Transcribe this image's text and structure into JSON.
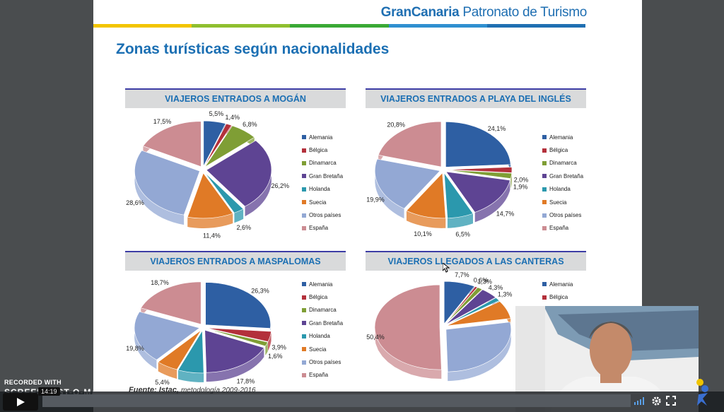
{
  "slide": {
    "brand_bold": "GranCanaria",
    "brand_rest": "Patronato de Turismo",
    "title": "Zonas turísticas según nacionalidades",
    "source_main": "Fuente: Istac,",
    "source_rest": "metodología 2009-2016",
    "stripe_colors": [
      "#f2c500",
      "#8fbf2f",
      "#3aa935",
      "#2f8fd0",
      "#1f6fb2"
    ]
  },
  "legend_labels": [
    "Alemania",
    "Bélgica",
    "Dinamarca",
    "Gran Bretaña",
    "Holanda",
    "Suecia",
    "Otros países",
    "España"
  ],
  "legend_colors": [
    "#2e5fa3",
    "#b3303b",
    "#7f9e35",
    "#5e4493",
    "#2b98ad",
    "#e07a26",
    "#93a8d4",
    "#cc8c92"
  ],
  "chart_data": [
    {
      "type": "pie",
      "title": "VIAJEROS ENTRADOS A MOGÁN",
      "categories": [
        "Alemania",
        "Bélgica",
        "Dinamarca",
        "Gran Bretaña",
        "Holanda",
        "Suecia",
        "Otros países",
        "España"
      ],
      "values": [
        5.5,
        1.4,
        6.8,
        26.2,
        2.6,
        11.4,
        28.6,
        17.5
      ],
      "labels": [
        "5,5%",
        "1,4%",
        "6,8%",
        "26,2%",
        "2,6%",
        "11,4%",
        "28,6%",
        "17,5%"
      ],
      "legend": "right"
    },
    {
      "type": "pie",
      "title": "VIAJEROS ENTRADOS A PLAYA DEL INGLÉS",
      "categories": [
        "Alemania",
        "Bélgica",
        "Dinamarca",
        "Gran Bretaña",
        "Holanda",
        "Suecia",
        "Otros países",
        "España"
      ],
      "values": [
        24.1,
        2.0,
        1.9,
        14.7,
        6.5,
        10.1,
        19.9,
        20.8
      ],
      "labels": [
        "24,1%",
        "2,0%",
        "1,9%",
        "14,7%",
        "6,5%",
        "10,1%",
        "19,9%",
        "20,8%"
      ],
      "legend": "right"
    },
    {
      "type": "pie",
      "title": "VIAJEROS ENTRADOS A MASPALOMAS",
      "categories": [
        "Alemania",
        "Bélgica",
        "Dinamarca",
        "Gran Bretaña",
        "Holanda",
        "Suecia",
        "Otros países",
        "España"
      ],
      "values": [
        26.3,
        3.9,
        1.6,
        17.8,
        6.4,
        5.4,
        19.8,
        18.7
      ],
      "labels": [
        "26,3%",
        "3,9%",
        "1,6%",
        "17,8%",
        "6,4%",
        "5,4%",
        "19,8%",
        "18,7%"
      ],
      "legend": "right"
    },
    {
      "type": "pie",
      "title": "VIAJEROS LLEGADOS A LAS CANTERAS",
      "categories": [
        "Alemania",
        "Bélgica",
        "Dinamarca",
        "Gran Bretaña",
        "Holanda",
        "Suecia",
        "Otros países",
        "España"
      ],
      "values": [
        7.7,
        0.6,
        1.3,
        4.3,
        1.3,
        7.0,
        27.4,
        50.4
      ],
      "labels": [
        "7,7%",
        "0,6%",
        "1,3%",
        "4,3%",
        "1,3%",
        "",
        "",
        "50,4%"
      ],
      "legend": "right"
    }
  ],
  "player": {
    "recorded_with": "RECORDED WITH",
    "brand": "SCREENCAST-O-MATIC",
    "time": "14:19",
    "icons": [
      "play-icon",
      "volume-icon",
      "settings-icon",
      "fullscreen-icon",
      "accessibility-icon"
    ]
  }
}
